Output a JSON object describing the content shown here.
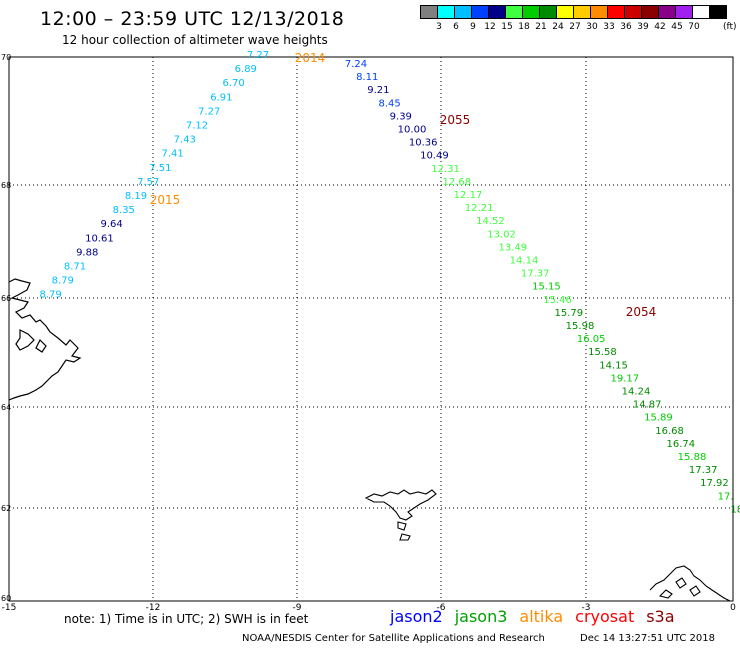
{
  "title": "12:00 – 23:59 UTC 12/13/2018",
  "subtitle": "12 hour collection of altimeter wave heights",
  "legend": {
    "colors": [
      "#808080",
      "#00ffff",
      "#00bfff",
      "#0040ff",
      "#00008b",
      "#40ff40",
      "#00cd00",
      "#008b00",
      "#ffff00",
      "#ffcc00",
      "#ff8c00",
      "#ff0000",
      "#cd0000",
      "#8b0000",
      "#8b008b",
      "#a020f0",
      "#ffffff",
      "#000000"
    ],
    "labels": [
      "3",
      "6",
      "9",
      "12",
      "15",
      "18",
      "21",
      "24",
      "27",
      "30",
      "33",
      "36",
      "39",
      "42",
      "45",
      "70"
    ],
    "unit": "(ft)"
  },
  "axes": {
    "lon_ticks": [
      "-15",
      "-12",
      "-9",
      "-6",
      "-3",
      "0"
    ],
    "lat_ticks": [
      "70",
      "68",
      "66",
      "64",
      "62",
      "60"
    ]
  },
  "times": [
    {
      "text": "2014",
      "color": "#ff8c00"
    },
    {
      "text": "2015",
      "color": "#ff8c00"
    },
    {
      "text": "2055",
      "color": "#8b0000"
    },
    {
      "text": "2054",
      "color": "#8b0000"
    }
  ],
  "track1": {
    "color_light": "#00bfff",
    "color_dark": "#00008b",
    "values": [
      "7.27",
      "6.89",
      "6.70",
      "6.91",
      "7.27",
      "7.12",
      "7.43",
      "7.41",
      "7.51",
      "7.57",
      "8.19",
      "8.35",
      "9.64",
      "10.61",
      "9.88",
      "8.71",
      "8.79",
      "8.79"
    ]
  },
  "track2": {
    "values": [
      "7.24",
      "8.11",
      "9.21",
      "8.45",
      "9.39",
      "10.00",
      "10.36",
      "10.49",
      "12.31",
      "12.68",
      "12.17",
      "12.21",
      "14.52",
      "13.02",
      "13.49",
      "14.14",
      "17.37",
      "15.15",
      "15.46",
      "15.79",
      "15.98",
      "16.05",
      "15.58",
      "14.15",
      "19.17",
      "14.24",
      "14.87",
      "15.89",
      "16.68",
      "16.74",
      "15.88",
      "17.37",
      "17.92",
      "17.",
      "18"
    ]
  },
  "note": "note: 1) Time is in UTC; 2) SWH is in feet",
  "satellites": [
    {
      "name": "jason2",
      "color": "#0000ff"
    },
    {
      "name": "jason3",
      "color": "#00a000"
    },
    {
      "name": "altika",
      "color": "#ff8c00"
    },
    {
      "name": "cryosat",
      "color": "#ff0000"
    },
    {
      "name": "s3a",
      "color": "#8b0000"
    }
  ],
  "footer": "NOAA/NESDIS Center for Satellite Applications and Research",
  "footer_date": "Dec 14 13:27:51 UTC 2018"
}
